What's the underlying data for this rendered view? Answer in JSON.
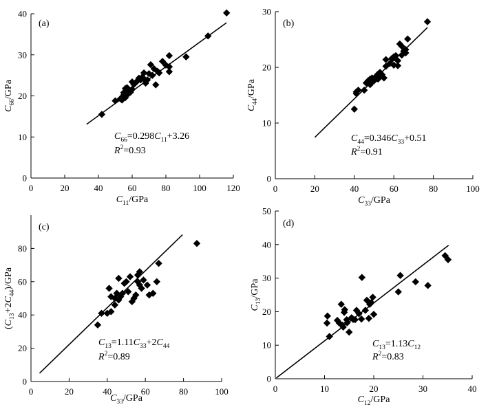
{
  "chart_data": [
    {
      "type": "scatter",
      "panel_label": "(a)",
      "xlabel": "C11/GPa",
      "ylabel": "C66/GPa",
      "xlabel_parts": [
        {
          "t": "C",
          "i": true
        },
        {
          "t": "11",
          "sub": true
        },
        {
          "t": "/GPa"
        }
      ],
      "ylabel_parts": [
        {
          "t": "C",
          "i": true
        },
        {
          "t": "66",
          "sub": true
        },
        {
          "t": "/GPa"
        }
      ],
      "xlim": [
        0,
        120
      ],
      "ylim": [
        0,
        40
      ],
      "xticks": [
        0,
        20,
        40,
        60,
        80,
        100,
        120
      ],
      "yticks": [
        0,
        10,
        20,
        30,
        40
      ],
      "xtick_labels": [
        "0",
        "20",
        "40",
        "60",
        "80",
        "100",
        "120"
      ],
      "ytick_labels": [
        "0",
        "10",
        "20",
        "30",
        "40"
      ],
      "equation": "C66=0.298C11+3.26",
      "equation_parts": [
        {
          "t": "C",
          "i": true
        },
        {
          "t": "66",
          "sub": true
        },
        {
          "t": "=0.298"
        },
        {
          "t": "C",
          "i": true
        },
        {
          "t": "11",
          "sub": true
        },
        {
          "t": "+3.26"
        }
      ],
      "r2": "R2=0.93",
      "r2_parts": [
        {
          "t": "R",
          "i": true
        },
        {
          "t": "2",
          "sup": true
        },
        {
          "t": "=0.93"
        }
      ],
      "fit": {
        "slope": 0.298,
        "intercept": 3.26,
        "x_range": [
          33,
          116
        ]
      },
      "points": [
        [
          42,
          15.5
        ],
        [
          50,
          18.8
        ],
        [
          53,
          19.3
        ],
        [
          54,
          19.0
        ],
        [
          55,
          20.2
        ],
        [
          55,
          20.8
        ],
        [
          56,
          19.6
        ],
        [
          56,
          21.8
        ],
        [
          57,
          20.4
        ],
        [
          57,
          22.0
        ],
        [
          58,
          21.2
        ],
        [
          58,
          20.6
        ],
        [
          59,
          21.3
        ],
        [
          59,
          20.9
        ],
        [
          60,
          23.4
        ],
        [
          60,
          21.6
        ],
        [
          61,
          22.8
        ],
        [
          62,
          23.2
        ],
        [
          63,
          23.6
        ],
        [
          64,
          24.3
        ],
        [
          65,
          23.9
        ],
        [
          66,
          24.6
        ],
        [
          67,
          24.1
        ],
        [
          67,
          25.6
        ],
        [
          68,
          23.1
        ],
        [
          69,
          23.9
        ],
        [
          70,
          25.4
        ],
        [
          71,
          27.6
        ],
        [
          72,
          25.0
        ],
        [
          73,
          26.6
        ],
        [
          74,
          22.7
        ],
        [
          75,
          26.0
        ],
        [
          76,
          25.6
        ],
        [
          78,
          28.4
        ],
        [
          80,
          27.5
        ],
        [
          82,
          29.8
        ],
        [
          82,
          27.1
        ],
        [
          82,
          25.9
        ],
        [
          92,
          29.5
        ],
        [
          105,
          34.6
        ],
        [
          116,
          40.2
        ]
      ]
    },
    {
      "type": "scatter",
      "panel_label": "(b)",
      "xlabel": "C33/GPa",
      "ylabel": "C44/GPa",
      "xlabel_parts": [
        {
          "t": "C",
          "i": true
        },
        {
          "t": "33",
          "sub": true
        },
        {
          "t": "/GPa"
        }
      ],
      "ylabel_parts": [
        {
          "t": "C",
          "i": true
        },
        {
          "t": "44",
          "sub": true
        },
        {
          "t": "/GPa"
        }
      ],
      "xlim": [
        0,
        100
      ],
      "ylim": [
        0,
        30
      ],
      "xticks": [
        0,
        20,
        40,
        60,
        80,
        100
      ],
      "yticks": [
        0,
        10,
        20,
        30
      ],
      "xtick_labels": [
        "0",
        "20",
        "40",
        "60",
        "80",
        "100"
      ],
      "ytick_labels": [
        "0",
        "10",
        "20",
        "30"
      ],
      "equation": "C44=0.346C33+0.51",
      "equation_parts": [
        {
          "t": "C",
          "i": true
        },
        {
          "t": "44",
          "sub": true
        },
        {
          "t": "=0.346"
        },
        {
          "t": "C",
          "i": true
        },
        {
          "t": "33",
          "sub": true
        },
        {
          "t": "+0.51"
        }
      ],
      "r2": "R2=0.91",
      "r2_parts": [
        {
          "t": "R",
          "i": true
        },
        {
          "t": "2",
          "sup": true
        },
        {
          "t": "=0.91"
        }
      ],
      "fit": {
        "slope": 0.346,
        "intercept": 0.51,
        "x_range": [
          20,
          77
        ]
      },
      "points": [
        [
          40,
          12.5
        ],
        [
          41,
          15.3
        ],
        [
          41,
          15.6
        ],
        [
          42,
          15.9
        ],
        [
          45,
          15.9
        ],
        [
          46,
          17.2
        ],
        [
          47,
          17.6
        ],
        [
          48,
          16.9
        ],
        [
          48,
          17.9
        ],
        [
          49,
          17.4
        ],
        [
          49,
          18.1
        ],
        [
          50,
          17.6
        ],
        [
          51,
          18.4
        ],
        [
          51,
          18.0
        ],
        [
          52,
          18.8
        ],
        [
          52,
          17.9
        ],
        [
          53,
          19.1
        ],
        [
          53,
          18.4
        ],
        [
          54,
          18.7
        ],
        [
          55,
          18.1
        ],
        [
          56,
          20.2
        ],
        [
          56,
          21.4
        ],
        [
          58,
          20.7
        ],
        [
          59,
          21.6
        ],
        [
          60,
          20.4
        ],
        [
          60,
          21.9
        ],
        [
          61,
          22.1
        ],
        [
          62,
          21.2
        ],
        [
          62,
          20.3
        ],
        [
          63,
          24.2
        ],
        [
          64,
          22.2
        ],
        [
          64,
          23.8
        ],
        [
          65,
          22.9
        ],
        [
          66,
          23.2
        ],
        [
          66,
          22.6
        ],
        [
          67,
          25.1
        ],
        [
          77,
          28.2
        ]
      ]
    },
    {
      "type": "scatter",
      "panel_label": "(c)",
      "xlabel": "C33/GPa",
      "ylabel": "(C13+2C44)/GPa",
      "xlabel_parts": [
        {
          "t": "C",
          "i": true
        },
        {
          "t": "33",
          "sub": true
        },
        {
          "t": "/GPa"
        }
      ],
      "ylabel_parts": [
        {
          "t": "("
        },
        {
          "t": "C",
          "i": true
        },
        {
          "t": "13",
          "sub": true
        },
        {
          "t": "+2"
        },
        {
          "t": "C",
          "i": true
        },
        {
          "t": "44",
          "sub": true
        },
        {
          "t": ")/GPa"
        }
      ],
      "xlim": [
        0,
        100
      ],
      "ylim": [
        0,
        100
      ],
      "xticks": [
        0,
        20,
        40,
        60,
        80,
        100
      ],
      "yticks": [
        20,
        40,
        60,
        80
      ],
      "xtick_labels": [
        "0",
        "20",
        "40",
        "60",
        "80",
        "100"
      ],
      "ytick_labels": [
        "20",
        "40",
        "60",
        "80"
      ],
      "origin_label": "0",
      "equation": "C13=1.11C33+2C44",
      "equation_parts": [
        {
          "t": "C",
          "i": true
        },
        {
          "t": "13",
          "sub": true
        },
        {
          "t": "=1.11"
        },
        {
          "t": "C",
          "i": true
        },
        {
          "t": "33",
          "sub": true
        },
        {
          "t": "+2"
        },
        {
          "t": "C",
          "i": true
        },
        {
          "t": "44",
          "sub": true
        }
      ],
      "r2": "R2=0.89",
      "r2_parts": [
        {
          "t": "R",
          "i": true
        },
        {
          "t": "2",
          "sup": true
        },
        {
          "t": "=0.89"
        }
      ],
      "fit": {
        "slope": 1.11,
        "intercept": 0,
        "x_range": [
          4.5,
          79.5
        ]
      },
      "points": [
        [
          35,
          34
        ],
        [
          37,
          41
        ],
        [
          40,
          41
        ],
        [
          41,
          56
        ],
        [
          42,
          42
        ],
        [
          42,
          51
        ],
        [
          44,
          46
        ],
        [
          44,
          50
        ],
        [
          45,
          53
        ],
        [
          46,
          49
        ],
        [
          46,
          62
        ],
        [
          47,
          51
        ],
        [
          48,
          53
        ],
        [
          49,
          59
        ],
        [
          50,
          60
        ],
        [
          51,
          54
        ],
        [
          52,
          63
        ],
        [
          53,
          48
        ],
        [
          54,
          50
        ],
        [
          55,
          52
        ],
        [
          56,
          60
        ],
        [
          56,
          64
        ],
        [
          57,
          58
        ],
        [
          57,
          66
        ],
        [
          58,
          56
        ],
        [
          59,
          61
        ],
        [
          61,
          58
        ],
        [
          62,
          52
        ],
        [
          64,
          53
        ],
        [
          66,
          60
        ],
        [
          67,
          71
        ],
        [
          87,
          83
        ]
      ]
    },
    {
      "type": "scatter",
      "panel_label": "(d)",
      "xlabel": "C12/GPa",
      "ylabel": "C13/GPa",
      "xlabel_parts": [
        {
          "t": "C",
          "i": true
        },
        {
          "t": "12",
          "sub": true
        },
        {
          "t": "/GPa"
        }
      ],
      "ylabel_parts": [
        {
          "t": "C",
          "i": true
        },
        {
          "t": "13",
          "sub": true
        },
        {
          "t": "/GPa"
        }
      ],
      "xlim": [
        0,
        40
      ],
      "ylim": [
        0,
        50
      ],
      "xticks": [
        0,
        10,
        20,
        30,
        40
      ],
      "yticks": [
        0,
        10,
        20,
        30,
        40,
        50
      ],
      "xtick_labels": [
        "0",
        "10",
        "20",
        "30",
        "40"
      ],
      "ytick_labels": [
        "0",
        "10",
        "20",
        "30",
        "40",
        "50"
      ],
      "equation": "C13=1.13C12",
      "equation_parts": [
        {
          "t": "C",
          "i": true
        },
        {
          "t": "13",
          "sub": true
        },
        {
          "t": "=1.13"
        },
        {
          "t": "C",
          "i": true
        },
        {
          "t": "12",
          "sub": true
        }
      ],
      "r2": "R2=0.83",
      "r2_parts": [
        {
          "t": "R",
          "i": true
        },
        {
          "t": "2",
          "sup": true
        },
        {
          "t": "=0.83"
        }
      ],
      "fit": {
        "slope": 1.13,
        "intercept": 0,
        "x_range": [
          0.2,
          35.2
        ]
      },
      "points": [
        [
          10.5,
          16.6
        ],
        [
          10.6,
          18.7
        ],
        [
          11,
          12.6
        ],
        [
          12.6,
          17.4
        ],
        [
          13,
          16.6
        ],
        [
          13.4,
          22.2
        ],
        [
          13.6,
          16.0
        ],
        [
          13.8,
          15.4
        ],
        [
          14,
          19.8
        ],
        [
          14.1,
          20.6
        ],
        [
          14.5,
          17.6
        ],
        [
          14.6,
          16.7
        ],
        [
          15,
          13.9
        ],
        [
          15.5,
          18.2
        ],
        [
          15.8,
          17.7
        ],
        [
          16.2,
          17.6
        ],
        [
          16.5,
          20.4
        ],
        [
          17,
          19.4
        ],
        [
          17.5,
          17.8
        ],
        [
          17.6,
          30.2
        ],
        [
          18.3,
          20.4
        ],
        [
          18.6,
          23.4
        ],
        [
          19,
          18.0
        ],
        [
          19.2,
          22.2
        ],
        [
          19.5,
          22.7
        ],
        [
          19.8,
          24.3
        ],
        [
          20,
          19.2
        ],
        [
          25,
          25.9
        ],
        [
          25.4,
          30.8
        ],
        [
          28.5,
          28.9
        ],
        [
          31,
          27.8
        ],
        [
          34.5,
          36.7
        ],
        [
          35.1,
          35.5
        ]
      ]
    }
  ]
}
